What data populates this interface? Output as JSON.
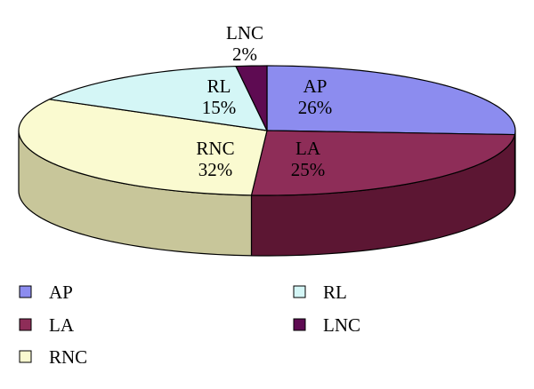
{
  "chart_data": {
    "type": "pie",
    "style": "3d",
    "slices": [
      {
        "name": "AP",
        "label_name": "AP",
        "label_value": "26%",
        "value": 26,
        "color": "#8c8cef",
        "side_color": "#5a5ab0"
      },
      {
        "name": "LA",
        "label_name": "LA",
        "label_value": "25%",
        "value": 25,
        "color": "#8e2d58",
        "side_color": "#5c1633"
      },
      {
        "name": "RNC",
        "label_name": "RNC",
        "label_value": "32%",
        "value": 32,
        "color": "#fafad0",
        "side_color": "#c8c69a"
      },
      {
        "name": "RL",
        "label_name": "RL",
        "label_value": "15%",
        "value": 15,
        "color": "#d4f6f6",
        "side_color": "#9cc8c8"
      },
      {
        "name": "LNC",
        "label_name": "LNC",
        "label_value": "2%",
        "value": 2,
        "color": "#5e0b52",
        "side_color": "#3c0534"
      }
    ],
    "legend": {
      "placement": "bottom",
      "items": [
        {
          "label": "AP",
          "color": "#8c8cef"
        },
        {
          "label": "RL",
          "color": "#d4f6f6"
        },
        {
          "label": "LA",
          "color": "#8e2d58"
        },
        {
          "label": "LNC",
          "color": "#5e0b52"
        },
        {
          "label": "RNC",
          "color": "#fafad0"
        }
      ]
    }
  }
}
